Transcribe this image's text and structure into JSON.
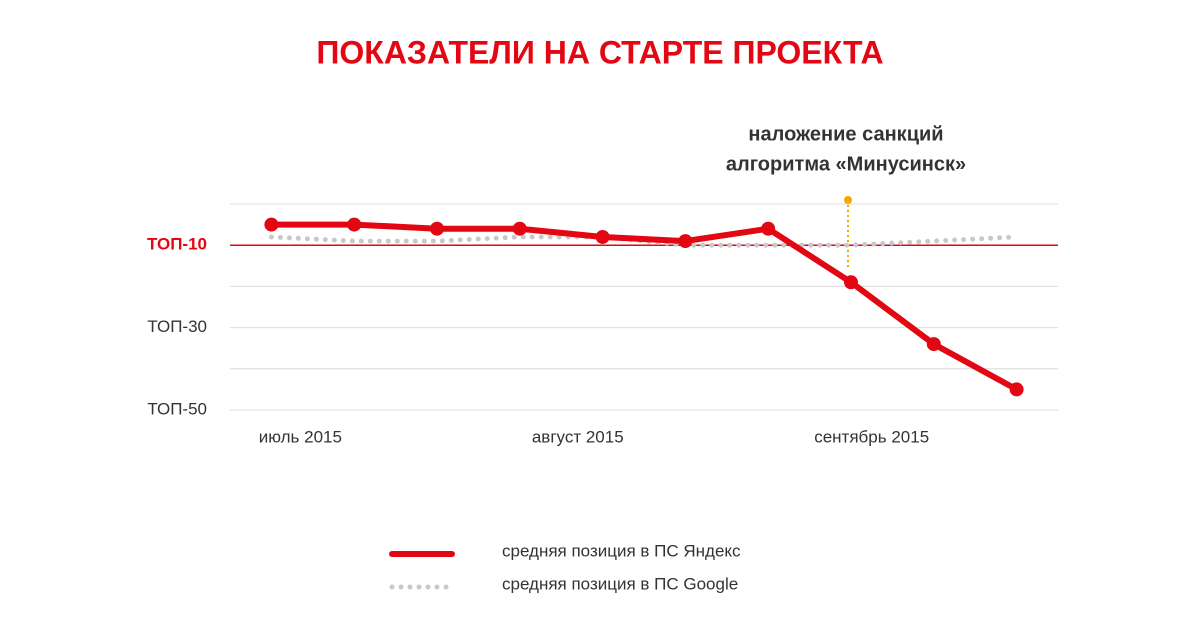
{
  "chart_data": {
    "type": "line",
    "title": "ПОКАЗАТЕЛИ НА СТАРТЕ ПРОЕКТА",
    "title_color": "#e30613",
    "x": [
      0,
      1,
      2,
      3,
      4,
      5,
      6,
      7,
      8,
      9
    ],
    "xlim": [
      -0.5,
      9.5
    ],
    "xticks": [
      {
        "value": 0.35,
        "label": "июль 2015"
      },
      {
        "value": 3.7,
        "label": "август 2015"
      },
      {
        "value": 7.25,
        "label": "сентябрь 2015"
      }
    ],
    "ylim": [
      50,
      0
    ],
    "yticks": [
      {
        "value": 10,
        "label": "ТОП-10",
        "color": "#e30613"
      },
      {
        "value": 30,
        "label": "ТОП-30"
      },
      {
        "value": 50,
        "label": "ТОП-50"
      }
    ],
    "grid": [
      0,
      10,
      20,
      30,
      40,
      50
    ],
    "series": [
      {
        "name": "средняя позиция в ПС Яндекс",
        "color": "#e30613",
        "style": "solid",
        "values": [
          5,
          5,
          6,
          6,
          8,
          9,
          6,
          19,
          34,
          45
        ]
      },
      {
        "name": "средняя позиция в ПС Google",
        "color": "#c8c8c8",
        "style": "dotted",
        "values": [
          8,
          9,
          9,
          8,
          8,
          10,
          10,
          10,
          9,
          8
        ]
      }
    ],
    "annotation": {
      "lines": [
        "наложение санкций",
        "алгоритма «Минусинск»"
      ],
      "x": 7,
      "color": "#f5a800"
    },
    "legend": "bottom"
  }
}
